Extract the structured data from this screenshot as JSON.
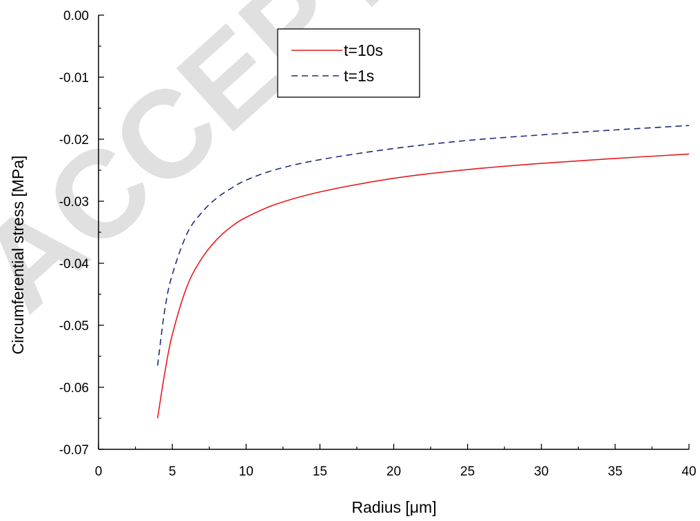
{
  "watermark": "ACCEPTED",
  "chart_data": {
    "type": "line",
    "title": "",
    "xlabel": "Radius [μm]",
    "ylabel": "Circumferential stress [MPa]",
    "xlim": [
      0,
      40
    ],
    "ylim": [
      -0.07,
      0.0
    ],
    "x_ticks": [
      0,
      5,
      10,
      15,
      20,
      25,
      30,
      35,
      40
    ],
    "x_tick_labels": [
      "0",
      "5",
      "10",
      "15",
      "20",
      "25",
      "30",
      "35",
      "40"
    ],
    "y_ticks": [
      0.0,
      -0.01,
      -0.02,
      -0.03,
      -0.04,
      -0.05,
      -0.06,
      -0.07
    ],
    "y_tick_labels": [
      "0.00",
      "-0.01",
      "-0.02",
      "-0.03",
      "-0.04",
      "-0.05",
      "-0.06",
      "-0.07"
    ],
    "grid": false,
    "legend_position": "top-center",
    "series": [
      {
        "name": "t=10s",
        "color": "#e41a1c",
        "dash": "solid",
        "x": [
          4,
          4.5,
          5,
          6,
          7,
          8,
          9,
          10,
          12,
          15,
          20,
          25,
          30,
          35,
          40
        ],
        "y": [
          -0.065,
          -0.0575,
          -0.0515,
          -0.0437,
          -0.0392,
          -0.0362,
          -0.0341,
          -0.0326,
          -0.0305,
          -0.0285,
          -0.0263,
          -0.0249,
          -0.0239,
          -0.0231,
          -0.0224
        ]
      },
      {
        "name": "t=1s",
        "color": "#1f2a7a",
        "dash": "dashed",
        "x": [
          4,
          4.5,
          5,
          6,
          7,
          8,
          9,
          10,
          12,
          15,
          20,
          25,
          30,
          35,
          40
        ],
        "y": [
          -0.0565,
          -0.0473,
          -0.0418,
          -0.0352,
          -0.0318,
          -0.0295,
          -0.0279,
          -0.0266,
          -0.0249,
          -0.0233,
          -0.0215,
          -0.0202,
          -0.0193,
          -0.0185,
          -0.0178
        ]
      }
    ]
  }
}
